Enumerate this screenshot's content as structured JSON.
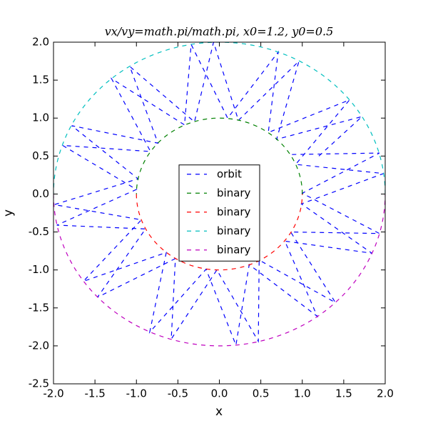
{
  "chart_data": {
    "type": "line",
    "title": "vx/vy=math.pi/math.pi, x0=1.2, y0=0.5",
    "x_label": "x",
    "y_label": "y",
    "xlim": [
      -2.0,
      2.0
    ],
    "ylim": [
      -2.5,
      2.0
    ],
    "xticks": [
      {
        "value": -2.0,
        "label": "-2.0"
      },
      {
        "value": -1.5,
        "label": "-1.5"
      },
      {
        "value": -1.0,
        "label": "-1.0"
      },
      {
        "value": -0.5,
        "label": "-0.5"
      },
      {
        "value": 0.0,
        "label": "0.0"
      },
      {
        "value": 0.5,
        "label": "0.5"
      },
      {
        "value": 1.0,
        "label": "1.0"
      },
      {
        "value": 1.5,
        "label": "1.5"
      },
      {
        "value": 2.0,
        "label": "2.0"
      }
    ],
    "yticks": [
      {
        "value": -2.5,
        "label": "-2.5"
      },
      {
        "value": -2.0,
        "label": "-2.0"
      },
      {
        "value": -1.5,
        "label": "-1.5"
      },
      {
        "value": -1.0,
        "label": "-1.0"
      },
      {
        "value": -0.5,
        "label": "-0.5"
      },
      {
        "value": 0.0,
        "label": "0.0"
      },
      {
        "value": 0.5,
        "label": "0.5"
      },
      {
        "value": 1.0,
        "label": "1.0"
      },
      {
        "value": 1.5,
        "label": "1.5"
      },
      {
        "value": 2.0,
        "label": "2.0"
      }
    ],
    "legend": "center",
    "series": [
      {
        "name": "orbit",
        "color": "#0000ff",
        "curve": "straight",
        "x": [
          1.2,
          1.72,
          0.69,
          0.96,
          0.23,
          -0.07,
          -0.3,
          -1.08,
          -0.74,
          -1.78,
          -0.98,
          -1.99,
          -0.94,
          -1.64,
          -0.64,
          -0.84,
          -0.16,
          0.2,
          0.36,
          1.18,
          0.79,
          1.84,
          0.99,
          1.98,
          0.92,
          1.57,
          0.59,
          0.71,
          0.1,
          -0.34,
          -0.42,
          -1.3,
          -0.83,
          -1.89,
          -1.0,
          -1.96,
          -0.89,
          -1.47,
          -0.53,
          -0.58,
          -0.03,
          0.47,
          0.48,
          1.4,
          0.86,
          1.93,
          1.0,
          1.93,
          0.86
        ],
        "y": [
          0.5,
          1.02,
          0.72,
          1.75,
          0.97,
          2.0,
          0.95,
          1.68,
          0.67,
          0.9,
          0.2,
          -0.14,
          -0.34,
          -1.15,
          -0.77,
          -1.82,
          -0.99,
          -1.99,
          -0.93,
          -1.61,
          -0.62,
          -0.78,
          -0.13,
          0.27,
          0.39,
          1.24,
          0.81,
          1.87,
          1.0,
          1.97,
          0.91,
          1.52,
          0.56,
          0.64,
          0.06,
          -0.41,
          -0.46,
          -1.36,
          -0.85,
          -1.91,
          -1.0,
          -1.94,
          -0.87,
          -1.43,
          -0.5,
          -0.52,
          0.01,
          0.54,
          0.52
        ]
      },
      {
        "name": "binary",
        "color": "#008000",
        "curve": "arc",
        "x": [
          1.0,
          0.866,
          0.5,
          0.0,
          -0.5,
          -0.866,
          -1.0
        ],
        "y": [
          0.0,
          0.5,
          0.866,
          1.0,
          0.866,
          0.5,
          0.0
        ]
      },
      {
        "name": "binary",
        "color": "#ff0000",
        "curve": "arc",
        "x": [
          -1.0,
          -0.866,
          -0.5,
          0.0,
          0.5,
          0.866,
          1.0
        ],
        "y": [
          0.0,
          -0.5,
          -0.866,
          -1.0,
          -0.866,
          -0.5,
          0.0
        ]
      },
      {
        "name": "binary",
        "color": "#00bfbf",
        "curve": "arc",
        "x": [
          2.0,
          1.732,
          1.0,
          0.0,
          -1.0,
          -1.732,
          -2.0
        ],
        "y": [
          0.0,
          1.0,
          1.732,
          2.0,
          1.732,
          1.0,
          0.0
        ]
      },
      {
        "name": "binary",
        "color": "#bf00bf",
        "curve": "arc",
        "x": [
          -2.0,
          -1.732,
          -1.0,
          0.0,
          1.0,
          1.732,
          2.0
        ],
        "y": [
          0.0,
          -1.0,
          -1.732,
          -2.0,
          -1.732,
          -1.0,
          0.0
        ]
      }
    ]
  }
}
